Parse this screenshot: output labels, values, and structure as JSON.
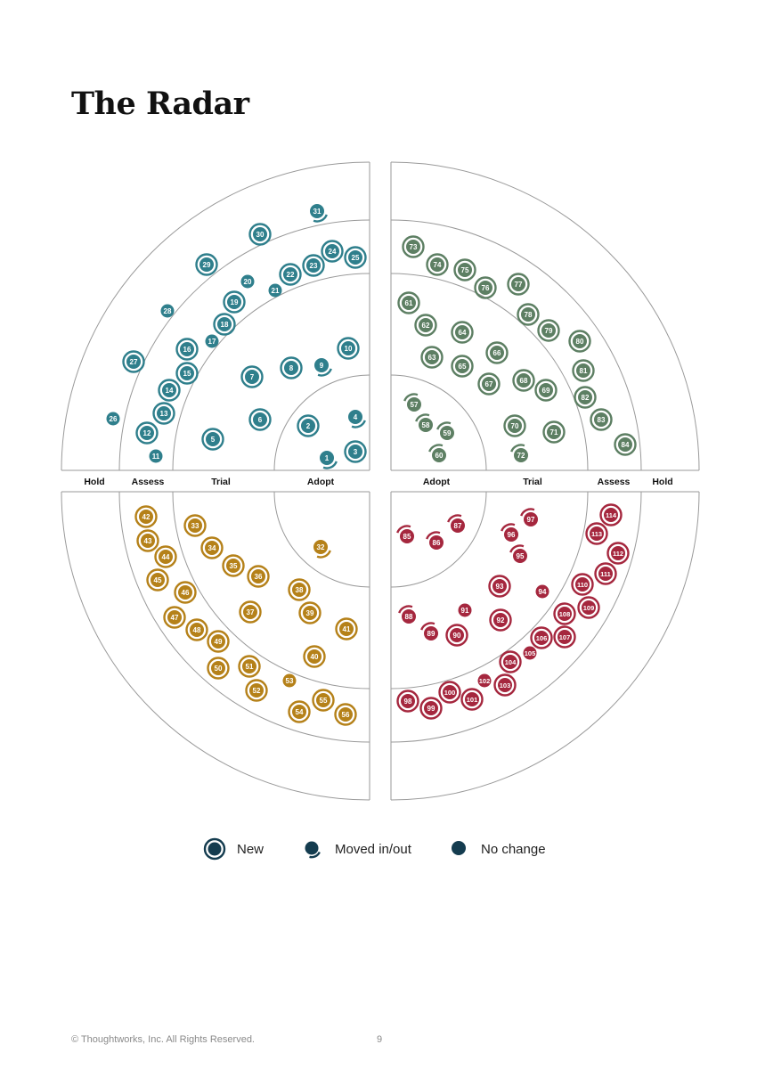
{
  "title": "The Radar",
  "rings_left": [
    "Hold",
    "Assess",
    "Trial",
    "Adopt"
  ],
  "rings_right": [
    "Adopt",
    "Trial",
    "Assess",
    "Hold"
  ],
  "colors": {
    "top-left": "#2f7f8c",
    "top-right": "#5d7f63",
    "bottom-left": "#b58119",
    "bottom-right": "#a5273e",
    "legend": "#143c4f",
    "lines": "#9a9a9a"
  },
  "legend": [
    {
      "type": "new",
      "label": "New"
    },
    {
      "type": "moved",
      "label": "Moved in/out"
    },
    {
      "type": "nochange",
      "label": "No change"
    }
  ],
  "blips": {
    "top-left": [
      {
        "n": 1,
        "t": "moved"
      },
      {
        "n": 2,
        "t": "new"
      },
      {
        "n": 3,
        "t": "new"
      },
      {
        "n": 4,
        "t": "moved"
      },
      {
        "n": 5,
        "t": "new"
      },
      {
        "n": 6,
        "t": "new"
      },
      {
        "n": 7,
        "t": "new"
      },
      {
        "n": 8,
        "t": "new"
      },
      {
        "n": 9,
        "t": "moved"
      },
      {
        "n": 10,
        "t": "new"
      },
      {
        "n": 11,
        "t": "none"
      },
      {
        "n": 12,
        "t": "new"
      },
      {
        "n": 13,
        "t": "new"
      },
      {
        "n": 14,
        "t": "new"
      },
      {
        "n": 15,
        "t": "new"
      },
      {
        "n": 16,
        "t": "new"
      },
      {
        "n": 17,
        "t": "none"
      },
      {
        "n": 18,
        "t": "new"
      },
      {
        "n": 19,
        "t": "new"
      },
      {
        "n": 20,
        "t": "none"
      },
      {
        "n": 21,
        "t": "none"
      },
      {
        "n": 22,
        "t": "new"
      },
      {
        "n": 23,
        "t": "new"
      },
      {
        "n": 24,
        "t": "new"
      },
      {
        "n": 25,
        "t": "new"
      },
      {
        "n": 26,
        "t": "none"
      },
      {
        "n": 27,
        "t": "new"
      },
      {
        "n": 28,
        "t": "none"
      },
      {
        "n": 29,
        "t": "new"
      },
      {
        "n": 30,
        "t": "new"
      },
      {
        "n": 31,
        "t": "moved"
      }
    ],
    "bottom-left": [
      {
        "n": 32,
        "t": "moved"
      },
      {
        "n": 33,
        "t": "new"
      },
      {
        "n": 34,
        "t": "new"
      },
      {
        "n": 35,
        "t": "new"
      },
      {
        "n": 36,
        "t": "new"
      },
      {
        "n": 37,
        "t": "new"
      },
      {
        "n": 38,
        "t": "new"
      },
      {
        "n": 39,
        "t": "new"
      },
      {
        "n": 40,
        "t": "new"
      },
      {
        "n": 41,
        "t": "new"
      },
      {
        "n": 42,
        "t": "new"
      },
      {
        "n": 43,
        "t": "new"
      },
      {
        "n": 44,
        "t": "new"
      },
      {
        "n": 45,
        "t": "new"
      },
      {
        "n": 46,
        "t": "new"
      },
      {
        "n": 47,
        "t": "new"
      },
      {
        "n": 48,
        "t": "new"
      },
      {
        "n": 49,
        "t": "new"
      },
      {
        "n": 50,
        "t": "new"
      },
      {
        "n": 51,
        "t": "new"
      },
      {
        "n": 52,
        "t": "new"
      },
      {
        "n": 53,
        "t": "none"
      },
      {
        "n": 54,
        "t": "new"
      },
      {
        "n": 55,
        "t": "new"
      },
      {
        "n": 56,
        "t": "new"
      }
    ],
    "top-right": [
      {
        "n": 57,
        "t": "moved"
      },
      {
        "n": 58,
        "t": "moved"
      },
      {
        "n": 59,
        "t": "moved"
      },
      {
        "n": 60,
        "t": "moved"
      },
      {
        "n": 61,
        "t": "new"
      },
      {
        "n": 62,
        "t": "new"
      },
      {
        "n": 63,
        "t": "new"
      },
      {
        "n": 64,
        "t": "new"
      },
      {
        "n": 65,
        "t": "new"
      },
      {
        "n": 66,
        "t": "new"
      },
      {
        "n": 67,
        "t": "new"
      },
      {
        "n": 68,
        "t": "new"
      },
      {
        "n": 69,
        "t": "new"
      },
      {
        "n": 70,
        "t": "new"
      },
      {
        "n": 71,
        "t": "new"
      },
      {
        "n": 72,
        "t": "moved"
      },
      {
        "n": 73,
        "t": "new"
      },
      {
        "n": 74,
        "t": "new"
      },
      {
        "n": 75,
        "t": "new"
      },
      {
        "n": 76,
        "t": "new"
      },
      {
        "n": 77,
        "t": "new"
      },
      {
        "n": 78,
        "t": "new"
      },
      {
        "n": 79,
        "t": "new"
      },
      {
        "n": 80,
        "t": "new"
      },
      {
        "n": 81,
        "t": "new"
      },
      {
        "n": 82,
        "t": "new"
      },
      {
        "n": 83,
        "t": "new"
      },
      {
        "n": 84,
        "t": "new"
      }
    ],
    "bottom-right": [
      {
        "n": 85,
        "t": "moved"
      },
      {
        "n": 86,
        "t": "moved"
      },
      {
        "n": 87,
        "t": "moved"
      },
      {
        "n": 88,
        "t": "moved"
      },
      {
        "n": 89,
        "t": "moved"
      },
      {
        "n": 90,
        "t": "new"
      },
      {
        "n": 91,
        "t": "none"
      },
      {
        "n": 92,
        "t": "new"
      },
      {
        "n": 93,
        "t": "new"
      },
      {
        "n": 94,
        "t": "none"
      },
      {
        "n": 95,
        "t": "moved"
      },
      {
        "n": 96,
        "t": "moved"
      },
      {
        "n": 97,
        "t": "moved"
      },
      {
        "n": 98,
        "t": "new"
      },
      {
        "n": 99,
        "t": "new"
      },
      {
        "n": 100,
        "t": "new"
      },
      {
        "n": 101,
        "t": "new"
      },
      {
        "n": 102,
        "t": "none"
      },
      {
        "n": 103,
        "t": "new"
      },
      {
        "n": 104,
        "t": "new"
      },
      {
        "n": 105,
        "t": "none"
      },
      {
        "n": 106,
        "t": "new"
      },
      {
        "n": 107,
        "t": "new"
      },
      {
        "n": 108,
        "t": "new"
      },
      {
        "n": 109,
        "t": "new"
      },
      {
        "n": 110,
        "t": "new"
      },
      {
        "n": 111,
        "t": "new"
      },
      {
        "n": 112,
        "t": "new"
      },
      {
        "n": 113,
        "t": "new"
      },
      {
        "n": 114,
        "t": "new"
      }
    ]
  },
  "footer": {
    "copyright": "© Thoughtworks, Inc. All Rights Reserved.",
    "page_number": "9"
  }
}
